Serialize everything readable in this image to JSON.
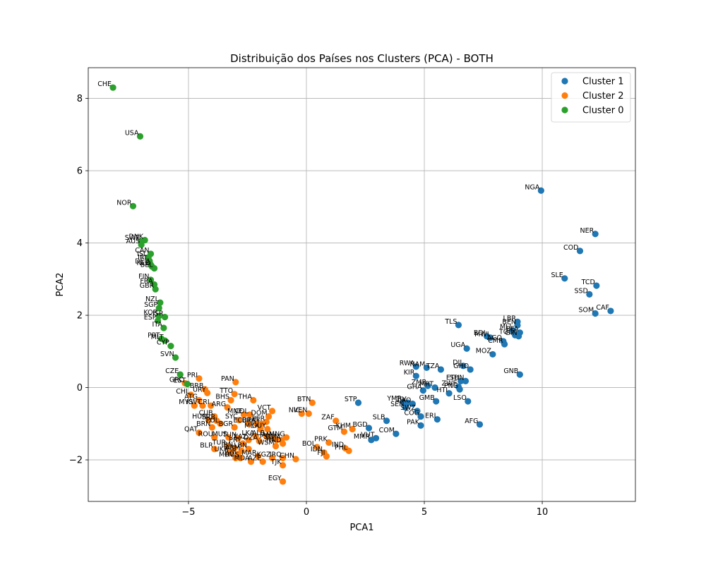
{
  "chart_data": {
    "type": "scatter",
    "title": "Distribuição dos Países nos Clusters (PCA) - BOTH",
    "xlabel": "PCA1",
    "ylabel": "PCA2",
    "xlim": [
      -9.25,
      13.95
    ],
    "ylim": [
      -3.15,
      8.85
    ],
    "xticks": [
      -5,
      0,
      5,
      10
    ],
    "yticks": [
      -2,
      0,
      2,
      4,
      6,
      8
    ],
    "grid": true,
    "legend_position": "upper right",
    "series": [
      {
        "name": "Cluster 1",
        "color": "#1f77b4",
        "points": [
          {
            "label": "NGA",
            "x": 9.95,
            "y": 5.45
          },
          {
            "label": "NER",
            "x": 12.25,
            "y": 4.25
          },
          {
            "label": "COD",
            "x": 11.6,
            "y": 3.78
          },
          {
            "label": "SLE",
            "x": 10.95,
            "y": 3.02
          },
          {
            "label": "TCD",
            "x": 12.3,
            "y": 2.82
          },
          {
            "label": "SSD",
            "x": 12.0,
            "y": 2.58
          },
          {
            "label": "SOM",
            "x": 12.25,
            "y": 2.05
          },
          {
            "label": "CAF",
            "x": 12.9,
            "y": 2.12
          },
          {
            "label": "TLS",
            "x": 6.45,
            "y": 1.73
          },
          {
            "label": "LBR",
            "x": 8.95,
            "y": 1.82
          },
          {
            "label": "BEN",
            "x": 8.95,
            "y": 1.72
          },
          {
            "label": "MLI",
            "x": 8.75,
            "y": 1.58
          },
          {
            "label": "BFA",
            "x": 9.05,
            "y": 1.52
          },
          {
            "label": "TGO",
            "x": 8.85,
            "y": 1.45
          },
          {
            "label": "GIN",
            "x": 9.0,
            "y": 1.42
          },
          {
            "label": "BDI",
            "x": 7.65,
            "y": 1.42
          },
          {
            "label": "MWI",
            "x": 7.8,
            "y": 1.38
          },
          {
            "label": "AGO",
            "x": 8.35,
            "y": 1.28
          },
          {
            "label": "CMR",
            "x": 8.4,
            "y": 1.2
          },
          {
            "label": "UGA",
            "x": 6.8,
            "y": 1.08
          },
          {
            "label": "MOZ",
            "x": 7.9,
            "y": 0.92
          },
          {
            "label": "RWA",
            "x": 4.65,
            "y": 0.58
          },
          {
            "label": "NAM",
            "x": 5.1,
            "y": 0.55
          },
          {
            "label": "TZA",
            "x": 5.7,
            "y": 0.5
          },
          {
            "label": "DJI",
            "x": 6.65,
            "y": 0.6
          },
          {
            "label": "GHO",
            "x": 6.95,
            "y": 0.5
          },
          {
            "label": "GNB",
            "x": 9.05,
            "y": 0.36
          },
          {
            "label": "KIR",
            "x": 4.65,
            "y": 0.32
          },
          {
            "label": "ETH",
            "x": 6.55,
            "y": 0.18
          },
          {
            "label": "SDN",
            "x": 6.75,
            "y": 0.18
          },
          {
            "label": "ZMB",
            "x": 5.15,
            "y": 0.05
          },
          {
            "label": "MRT",
            "x": 5.45,
            "y": 0.0
          },
          {
            "label": "ZWE",
            "x": 6.45,
            "y": 0.02
          },
          {
            "label": "GHA",
            "x": 4.95,
            "y": -0.08
          },
          {
            "label": "PNG",
            "x": 6.5,
            "y": -0.05
          },
          {
            "label": "HTI",
            "x": 6.05,
            "y": -0.16
          },
          {
            "label": "LSO",
            "x": 6.85,
            "y": -0.38
          },
          {
            "label": "STP",
            "x": 2.2,
            "y": -0.42
          },
          {
            "label": "YMR",
            "x": 4.1,
            "y": -0.4
          },
          {
            "label": "CIV",
            "x": 4.3,
            "y": -0.42
          },
          {
            "label": "LAO",
            "x": 4.5,
            "y": -0.45
          },
          {
            "label": "SEN",
            "x": 4.2,
            "y": -0.55
          },
          {
            "label": "GMB",
            "x": 5.5,
            "y": -0.38
          },
          {
            "label": "SWZ",
            "x": 4.7,
            "y": -0.65
          },
          {
            "label": "COG",
            "x": 4.85,
            "y": -0.8
          },
          {
            "label": "ERI",
            "x": 5.55,
            "y": -0.88
          },
          {
            "label": "AFG",
            "x": 7.35,
            "y": -1.02
          },
          {
            "label": "PAK",
            "x": 4.85,
            "y": -1.05
          },
          {
            "label": "SLB",
            "x": 3.4,
            "y": -0.92
          },
          {
            "label": "COM",
            "x": 3.8,
            "y": -1.28
          },
          {
            "label": "MMR",
            "x": 2.75,
            "y": -1.45
          },
          {
            "label": "VUT",
            "x": 2.95,
            "y": -1.4
          },
          {
            "label": "BGD",
            "x": 2.65,
            "y": -1.12
          }
        ]
      },
      {
        "name": "Cluster 2",
        "color": "#ff7f0e",
        "points": [
          {
            "label": "PRI",
            "x": -4.55,
            "y": 0.25
          },
          {
            "label": "PAN",
            "x": -3.0,
            "y": 0.15
          },
          {
            "label": "GRC",
            "x": -5.15,
            "y": 0.12
          },
          {
            "label": "BRB",
            "x": -4.3,
            "y": -0.05
          },
          {
            "label": "CHL",
            "x": -4.9,
            "y": -0.2
          },
          {
            "label": "URY",
            "x": -4.2,
            "y": -0.15
          },
          {
            "label": "TTO",
            "x": -3.05,
            "y": -0.18
          },
          {
            "label": "THA",
            "x": -2.25,
            "y": -0.35
          },
          {
            "label": "ATG",
            "x": -4.55,
            "y": -0.35
          },
          {
            "label": "BHS",
            "x": -3.2,
            "y": -0.35
          },
          {
            "label": "BTN",
            "x": 0.25,
            "y": -0.42
          },
          {
            "label": "MYS",
            "x": -4.75,
            "y": -0.5
          },
          {
            "label": "KWT",
            "x": -4.4,
            "y": -0.5
          },
          {
            "label": "CRI",
            "x": -4.05,
            "y": -0.5
          },
          {
            "label": "ARG",
            "x": -3.35,
            "y": -0.55
          },
          {
            "label": "VCT",
            "x": -1.45,
            "y": -0.65
          },
          {
            "label": "NIC",
            "x": -0.2,
            "y": -0.72
          },
          {
            "label": "VEN",
            "x": 0.1,
            "y": -0.72
          },
          {
            "label": "DOM",
            "x": -1.6,
            "y": -0.8
          },
          {
            "label": "MNE",
            "x": -2.65,
            "y": -0.75
          },
          {
            "label": "COL",
            "x": -2.4,
            "y": -0.75
          },
          {
            "label": "ZAF",
            "x": 1.25,
            "y": -0.92
          },
          {
            "label": "CUB",
            "x": -3.9,
            "y": -0.8
          },
          {
            "label": "HUN",
            "x": -4.15,
            "y": -0.9
          },
          {
            "label": "SRB",
            "x": -3.8,
            "y": -0.92
          },
          {
            "label": "POL",
            "x": -3.65,
            "y": -1.0
          },
          {
            "label": "SYC",
            "x": -2.85,
            "y": -0.9
          },
          {
            "label": "ECU",
            "x": -2.45,
            "y": -1.0
          },
          {
            "label": "BRA",
            "x": -2.1,
            "y": -1.0
          },
          {
            "label": "PRY",
            "x": -1.9,
            "y": -1.0
          },
          {
            "label": "PER",
            "x": -1.7,
            "y": -0.95
          },
          {
            "label": "BRN",
            "x": -4.0,
            "y": -1.1
          },
          {
            "label": "BGR",
            "x": -3.05,
            "y": -1.1
          },
          {
            "label": "MEX",
            "x": -1.95,
            "y": -1.15
          },
          {
            "label": "GUY",
            "x": -1.65,
            "y": -1.15
          },
          {
            "label": "QAT",
            "x": -4.55,
            "y": -1.25
          },
          {
            "label": "ROU",
            "x": -3.9,
            "y": -1.38
          },
          {
            "label": "MUS",
            "x": -3.3,
            "y": -1.38
          },
          {
            "label": "TUN",
            "x": -2.9,
            "y": -1.4
          },
          {
            "label": "LKA",
            "x": -2.15,
            "y": -1.35
          },
          {
            "label": "ALB",
            "x": -1.7,
            "y": -1.35
          },
          {
            "label": "JAM",
            "x": -1.4,
            "y": -1.4
          },
          {
            "label": "MNG",
            "x": -0.85,
            "y": -1.38
          },
          {
            "label": "GTM",
            "x": -1.05,
            "y": -1.45
          },
          {
            "label": "SLV",
            "x": -1.25,
            "y": -1.45
          },
          {
            "label": "HND",
            "x": -1.0,
            "y": -1.55
          },
          {
            "label": "KAZ",
            "x": -2.45,
            "y": -1.45
          },
          {
            "label": "DZA",
            "x": -2.0,
            "y": -1.48
          },
          {
            "label": "WSM",
            "x": -1.3,
            "y": -1.62
          },
          {
            "label": "PRY2",
            "x": -2.7,
            "y": -1.55
          },
          {
            "label": "BLR",
            "x": -3.9,
            "y": -1.7
          },
          {
            "label": "TUR",
            "x": -3.35,
            "y": -1.62
          },
          {
            "label": "IRN",
            "x": -3.05,
            "y": -1.68
          },
          {
            "label": "LBN",
            "x": -2.45,
            "y": -1.7
          },
          {
            "label": "ARM",
            "x": -2.75,
            "y": -1.75
          },
          {
            "label": "JOR",
            "x": -2.9,
            "y": -1.85
          },
          {
            "label": "UKR",
            "x": -3.25,
            "y": -1.8
          },
          {
            "label": "MDV",
            "x": -3.0,
            "y": -1.95
          },
          {
            "label": "RUS",
            "x": -2.8,
            "y": -1.95
          },
          {
            "label": "MAR",
            "x": -2.05,
            "y": -1.9
          },
          {
            "label": "KGZ",
            "x": -1.45,
            "y": -1.95
          },
          {
            "label": "IRQ",
            "x": -1.0,
            "y": -1.95
          },
          {
            "label": "AZE",
            "x": -1.85,
            "y": -2.05
          },
          {
            "label": "MDA",
            "x": -2.35,
            "y": -2.05
          },
          {
            "label": "TJK",
            "x": -1.0,
            "y": -2.15
          },
          {
            "label": "CHN",
            "x": -0.45,
            "y": -1.98
          },
          {
            "label": "IDN",
            "x": 0.75,
            "y": -1.8
          },
          {
            "label": "FJI",
            "x": 0.85,
            "y": -1.9
          },
          {
            "label": "BOL",
            "x": 0.45,
            "y": -1.65
          },
          {
            "label": "PHL",
            "x": 1.8,
            "y": -1.75
          },
          {
            "label": "PRK",
            "x": 0.95,
            "y": -1.52
          },
          {
            "label": "IND",
            "x": 1.65,
            "y": -1.68
          },
          {
            "label": "KHM",
            "x": 1.95,
            "y": -1.15
          },
          {
            "label": "GTM2",
            "x": 1.6,
            "y": -1.22
          },
          {
            "label": "EGY",
            "x": -1.0,
            "y": -2.6
          }
        ]
      },
      {
        "name": "Cluster 0",
        "color": "#2ca02c",
        "points": [
          {
            "label": "CHE",
            "x": -8.2,
            "y": 8.3
          },
          {
            "label": "USA",
            "x": -7.05,
            "y": 6.95
          },
          {
            "label": "NOR",
            "x": -7.35,
            "y": 5.02
          },
          {
            "label": "DNK",
            "x": -6.85,
            "y": 4.08
          },
          {
            "label": "SWE",
            "x": -7.0,
            "y": 4.05
          },
          {
            "label": "AUS",
            "x": -7.0,
            "y": 3.95
          },
          {
            "label": "CAN",
            "x": -6.6,
            "y": 3.7
          },
          {
            "label": "ISL",
            "x": -6.7,
            "y": 3.6
          },
          {
            "label": "IRL",
            "x": -6.65,
            "y": 3.5
          },
          {
            "label": "DEU",
            "x": -6.6,
            "y": 3.4
          },
          {
            "label": "NLD",
            "x": -6.55,
            "y": 3.35
          },
          {
            "label": "BEL",
            "x": -6.45,
            "y": 3.3
          },
          {
            "label": "FIN",
            "x": -6.6,
            "y": 2.98
          },
          {
            "label": "FRA",
            "x": -6.45,
            "y": 2.85
          },
          {
            "label": "GBR",
            "x": -6.4,
            "y": 2.72
          },
          {
            "label": "NZL",
            "x": -6.2,
            "y": 2.35
          },
          {
            "label": "SGP",
            "x": -6.25,
            "y": 2.2
          },
          {
            "label": "KOR",
            "x": -6.25,
            "y": 1.98
          },
          {
            "label": "ISR",
            "x": -6.0,
            "y": 1.95
          },
          {
            "label": "ESP",
            "x": -6.3,
            "y": 1.85
          },
          {
            "label": "ITA",
            "x": -6.05,
            "y": 1.65
          },
          {
            "label": "PRT",
            "x": -6.15,
            "y": 1.35
          },
          {
            "label": "MLT",
            "x": -6.0,
            "y": 1.3
          },
          {
            "label": "CYP",
            "x": -5.75,
            "y": 1.15
          },
          {
            "label": "SVN",
            "x": -5.55,
            "y": 0.83
          },
          {
            "label": "CZE",
            "x": -5.35,
            "y": 0.36
          },
          {
            "label": "EST",
            "x": -5.05,
            "y": 0.1
          }
        ]
      }
    ]
  }
}
